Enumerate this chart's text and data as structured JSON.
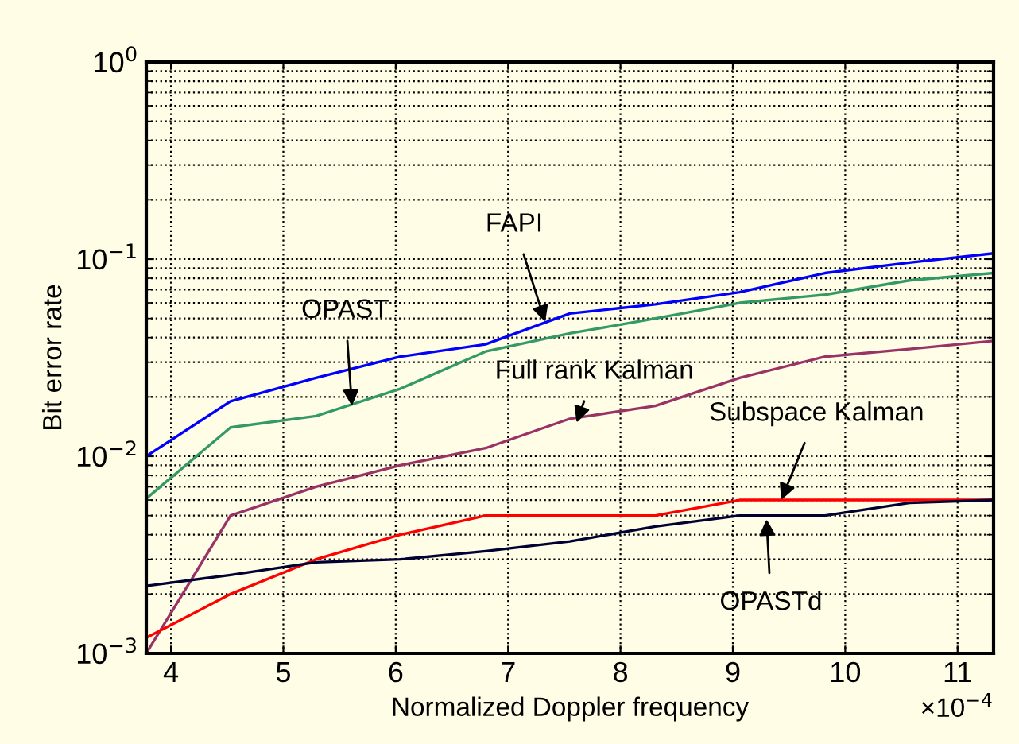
{
  "chart_data": {
    "type": "line",
    "xlabel": "Normalized Doppler frequency",
    "ylabel": "Bit error rate",
    "x": [
      3.78,
      4.53,
      5.29,
      6.04,
      6.8,
      7.55,
      8.31,
      9.06,
      9.82,
      10.57,
      11.32
    ],
    "series": [
      {
        "color": "#0000ff",
        "values": [
          0.01,
          0.019,
          0.025,
          0.032,
          0.037,
          0.053,
          0.059,
          0.068,
          0.085,
          0.096,
          0.107
        ]
      },
      {
        "color": "#339966",
        "values": [
          0.0061,
          0.014,
          0.016,
          0.022,
          0.034,
          0.042,
          0.05,
          0.06,
          0.066,
          0.078,
          0.085
        ]
      },
      {
        "color": "#993366",
        "values": [
          0.001,
          0.005,
          0.007,
          0.009,
          0.011,
          0.0155,
          0.018,
          0.025,
          0.032,
          0.035,
          0.0385
        ]
      },
      {
        "color": "#ff0000",
        "values": [
          0.0012,
          0.002,
          0.003,
          0.004,
          0.005,
          0.005,
          0.005,
          0.006,
          0.006,
          0.006,
          0.006
        ]
      },
      {
        "color": "#000033",
        "values": [
          0.0022,
          0.0025,
          0.0029,
          0.003,
          0.0033,
          0.0037,
          0.0044,
          0.005,
          0.005,
          0.0058,
          0.006
        ]
      }
    ],
    "log": "y",
    "xlim": [
      3.78,
      11.32
    ],
    "ylim": [
      0.001,
      1
    ],
    "xticks": [
      4,
      5,
      6,
      7,
      8,
      9,
      10,
      11
    ],
    "yticks": [
      {
        "value": 0.001,
        "label": "10$^{−3}$"
      },
      {
        "value": 0.01,
        "label": "10$^{−2}$"
      },
      {
        "value": 0.1,
        "label": "10$^{−1}$"
      },
      {
        "value": 1,
        "label": "10$^{0}$"
      }
    ],
    "grid": true,
    "marker": "none",
    "line_style": "solid",
    "annotations": [
      {
        "text": "FAPI",
        "x": 7.33,
        "y": 0.048
      },
      {
        "text": "OPAST",
        "x": 5.61,
        "y": 0.018
      },
      {
        "text": "Full rank Kalman",
        "x": 7.61,
        "y": 0.0148
      },
      {
        "text": "Subspace Kalman",
        "x": 9.43,
        "y": 0.006
      },
      {
        "text": "OPASTd",
        "x": 9.3,
        "y": 0.0048
      },
      "×10$^{−4}$"
    ]
  }
}
